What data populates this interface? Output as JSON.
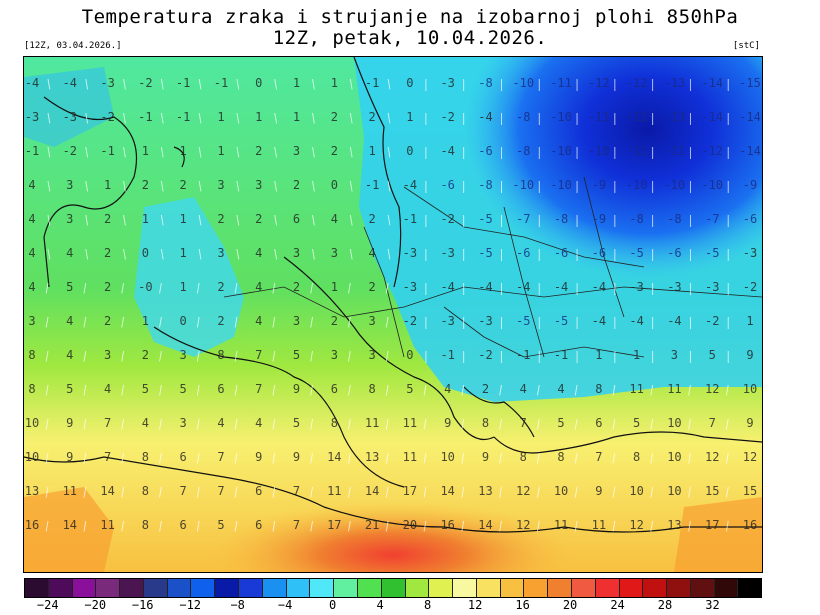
{
  "header": {
    "title_line1": "Temperatura zraka i strujanje na izobarnoj plohi 850hPa",
    "title_line2": "12Z, petak, 10.04.2026.",
    "run_info": "[12Z, 03.04.2026.]",
    "unit": "[stC]"
  },
  "map": {
    "field": "temperature 850hPa",
    "value_labels": [
      {
        "row": 1,
        "values": [
          "-4",
          "-4",
          "-3",
          "-2",
          "-1",
          "-1",
          "0",
          "1",
          "1",
          "-1",
          "0",
          "-3",
          "-8",
          "-10",
          "-11",
          "-12",
          "-12",
          "-13",
          "-14",
          "-15"
        ]
      },
      {
        "row": 2,
        "values": [
          "-3",
          "-3",
          "-2",
          "-1",
          "-1",
          "1",
          "1",
          "1",
          "2",
          "2",
          "1",
          "-2",
          "-4",
          "-8",
          "-10",
          "-11",
          "-12",
          "-13",
          "-14",
          "-14"
        ]
      },
      {
        "row": 3,
        "values": [
          "-1",
          "-2",
          "-1",
          "1",
          "1",
          "1",
          "2",
          "3",
          "2",
          "1",
          "0",
          "-4",
          "-6",
          "-8",
          "-10",
          "-10",
          "-11",
          "-11",
          "-12",
          "-14"
        ]
      },
      {
        "row": 4,
        "values": [
          "4",
          "3",
          "1",
          "2",
          "2",
          "3",
          "3",
          "2",
          "0",
          "-1",
          "-4",
          "-6",
          "-8",
          "-10",
          "-10",
          "-9",
          "-10",
          "-10",
          "-10",
          "-9"
        ]
      },
      {
        "row": 5,
        "values": [
          "4",
          "3",
          "2",
          "1",
          "1",
          "2",
          "2",
          "6",
          "4",
          "2",
          "-1",
          "-2",
          "-5",
          "-7",
          "-8",
          "-9",
          "-8",
          "-8",
          "-7",
          "-6"
        ]
      },
      {
        "row": 6,
        "values": [
          "4",
          "4",
          "2",
          "0",
          "1",
          "3",
          "4",
          "3",
          "3",
          "4",
          "-3",
          "-3",
          "-5",
          "-6",
          "-6",
          "-6",
          "-5",
          "-6",
          "-5",
          "-3"
        ]
      },
      {
        "row": 7,
        "values": [
          "4",
          "5",
          "2",
          "-0",
          "1",
          "2",
          "4",
          "2",
          "1",
          "2",
          "-3",
          "-4",
          "-4",
          "-4",
          "-4",
          "-4",
          "-3",
          "-3",
          "-3",
          "-2"
        ]
      },
      {
        "row": 8,
        "values": [
          "3",
          "4",
          "2",
          "1",
          "0",
          "2",
          "4",
          "3",
          "2",
          "3",
          "-2",
          "-3",
          "-3",
          "-5",
          "-5",
          "-4",
          "-4",
          "-4",
          "-2",
          "1"
        ]
      },
      {
        "row": 9,
        "values": [
          "8",
          "4",
          "3",
          "2",
          "3",
          "8",
          "7",
          "5",
          "3",
          "3",
          "0",
          "-1",
          "-2",
          "-1",
          "-1",
          "1",
          "1",
          "3",
          "5",
          "9"
        ]
      },
      {
        "row": 10,
        "values": [
          "8",
          "5",
          "4",
          "5",
          "5",
          "6",
          "7",
          "9",
          "6",
          "8",
          "5",
          "4",
          "2",
          "4",
          "4",
          "8",
          "11",
          "11",
          "12",
          "10"
        ]
      },
      {
        "row": 11,
        "values": [
          "10",
          "9",
          "7",
          "4",
          "3",
          "4",
          "4",
          "5",
          "8",
          "11",
          "11",
          "9",
          "8",
          "7",
          "5",
          "6",
          "5",
          "10",
          "7",
          "9"
        ]
      },
      {
        "row": 12,
        "values": [
          "10",
          "9",
          "7",
          "8",
          "6",
          "7",
          "9",
          "9",
          "14",
          "13",
          "11",
          "10",
          "9",
          "8",
          "8",
          "7",
          "8",
          "10",
          "12",
          "12"
        ]
      },
      {
        "row": 13,
        "values": [
          "13",
          "11",
          "14",
          "8",
          "7",
          "7",
          "6",
          "7",
          "11",
          "14",
          "17",
          "14",
          "13",
          "12",
          "10",
          "9",
          "10",
          "10",
          "15",
          "15"
        ]
      },
      {
        "row": 14,
        "values": [
          "16",
          "14",
          "11",
          "8",
          "6",
          "5",
          "6",
          "7",
          "17",
          "21",
          "20",
          "16",
          "14",
          "12",
          "11",
          "11",
          "12",
          "13",
          "17",
          "16"
        ]
      }
    ]
  },
  "legend": {
    "colors": [
      "#2b0b2f",
      "#4d0b5a",
      "#8a0f9a",
      "#7a2a7a",
      "#4b1552",
      "#2a3a8a",
      "#1a50c8",
      "#1060ee",
      "#0a1aa8",
      "#1a3ad8",
      "#1a90f0",
      "#30c0f8",
      "#50e8f8",
      "#60f0a0",
      "#50e050",
      "#30c030",
      "#a0e840",
      "#e0f050",
      "#f8f8a0",
      "#f8e060",
      "#f8c040",
      "#f8a030",
      "#f08030",
      "#f05a40",
      "#f03030",
      "#e01818",
      "#c01010",
      "#901010",
      "#601010",
      "#300808",
      "#000000"
    ],
    "tick_labels": [
      "−24",
      "−20",
      "−16",
      "−12",
      "−8",
      "−4",
      "0",
      "4",
      "8",
      "12",
      "16",
      "20",
      "24",
      "28",
      "32"
    ]
  }
}
